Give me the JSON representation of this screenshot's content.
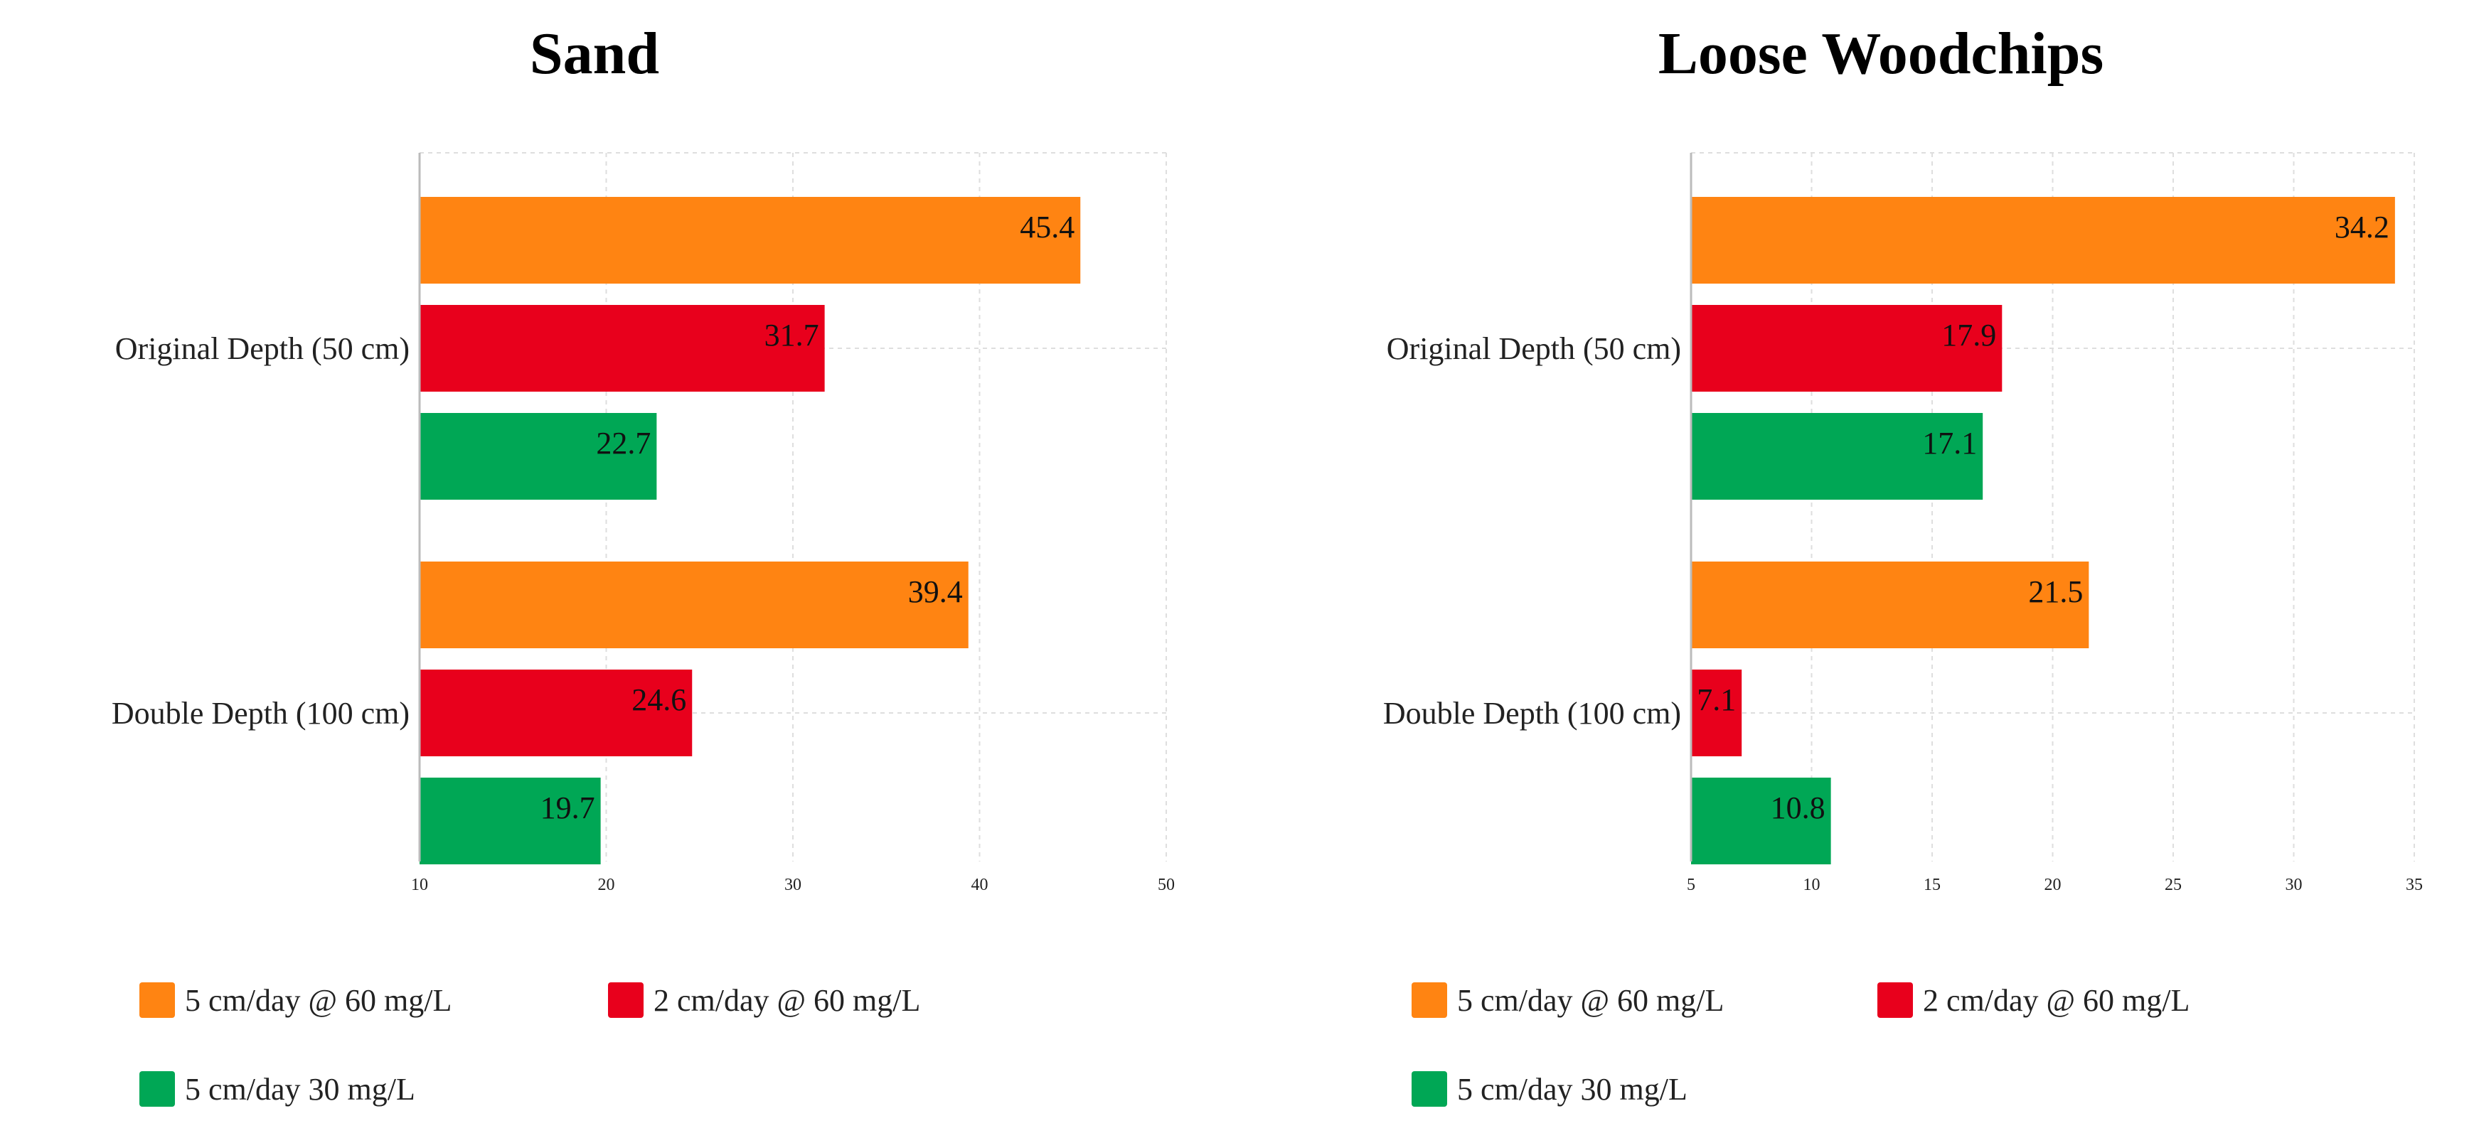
{
  "colors": {
    "orange": "#ff8412",
    "red": "#e8001c",
    "green": "#00a755"
  },
  "chart_data": [
    {
      "type": "bar",
      "orientation": "horizontal",
      "title": "Sand",
      "categories": [
        "Original Depth (50 cm)",
        "Double Depth (100 cm)"
      ],
      "series": [
        {
          "name": "5 cm/day @ 60 mg/L",
          "color": "#ff8412",
          "values": [
            45.4,
            39.4
          ],
          "labels": [
            "45.4",
            "39.4"
          ]
        },
        {
          "name": "2 cm/day @ 60 mg/L",
          "color": "#e8001c",
          "values": [
            31.7,
            24.6
          ],
          "labels": [
            "31.7",
            "24.6"
          ]
        },
        {
          "name": "5 cm/day 30 mg/L",
          "color": "#00a755",
          "values": [
            22.7,
            19.7
          ],
          "labels": [
            "22.7",
            "19.7"
          ]
        }
      ],
      "xlim": [
        10,
        50
      ],
      "xticks": [
        10,
        20,
        30,
        40,
        50
      ],
      "xlabel": "",
      "ylabel": "",
      "grid": true,
      "legend_position": "bottom"
    },
    {
      "type": "bar",
      "orientation": "horizontal",
      "title": "Loose Woodchips",
      "categories": [
        "Original Depth (50 cm)",
        "Double Depth (100 cm)"
      ],
      "series": [
        {
          "name": "5 cm/day @ 60 mg/L",
          "color": "#ff8412",
          "values": [
            34.2,
            21.5
          ],
          "labels": [
            "34.2",
            "21.5"
          ]
        },
        {
          "name": "2 cm/day @ 60 mg/L",
          "color": "#e8001c",
          "values": [
            17.9,
            7.1
          ],
          "labels": [
            "17.9",
            "7.1"
          ]
        },
        {
          "name": "5 cm/day 30 mg/L",
          "color": "#00a755",
          "values": [
            17.1,
            10.8
          ],
          "labels": [
            "17.1",
            "10.8"
          ]
        }
      ],
      "xlim": [
        5,
        35
      ],
      "xticks": [
        5,
        10,
        15,
        20,
        25,
        30,
        35
      ],
      "xlabel": "",
      "ylabel": "",
      "grid": true,
      "legend_position": "bottom"
    }
  ]
}
